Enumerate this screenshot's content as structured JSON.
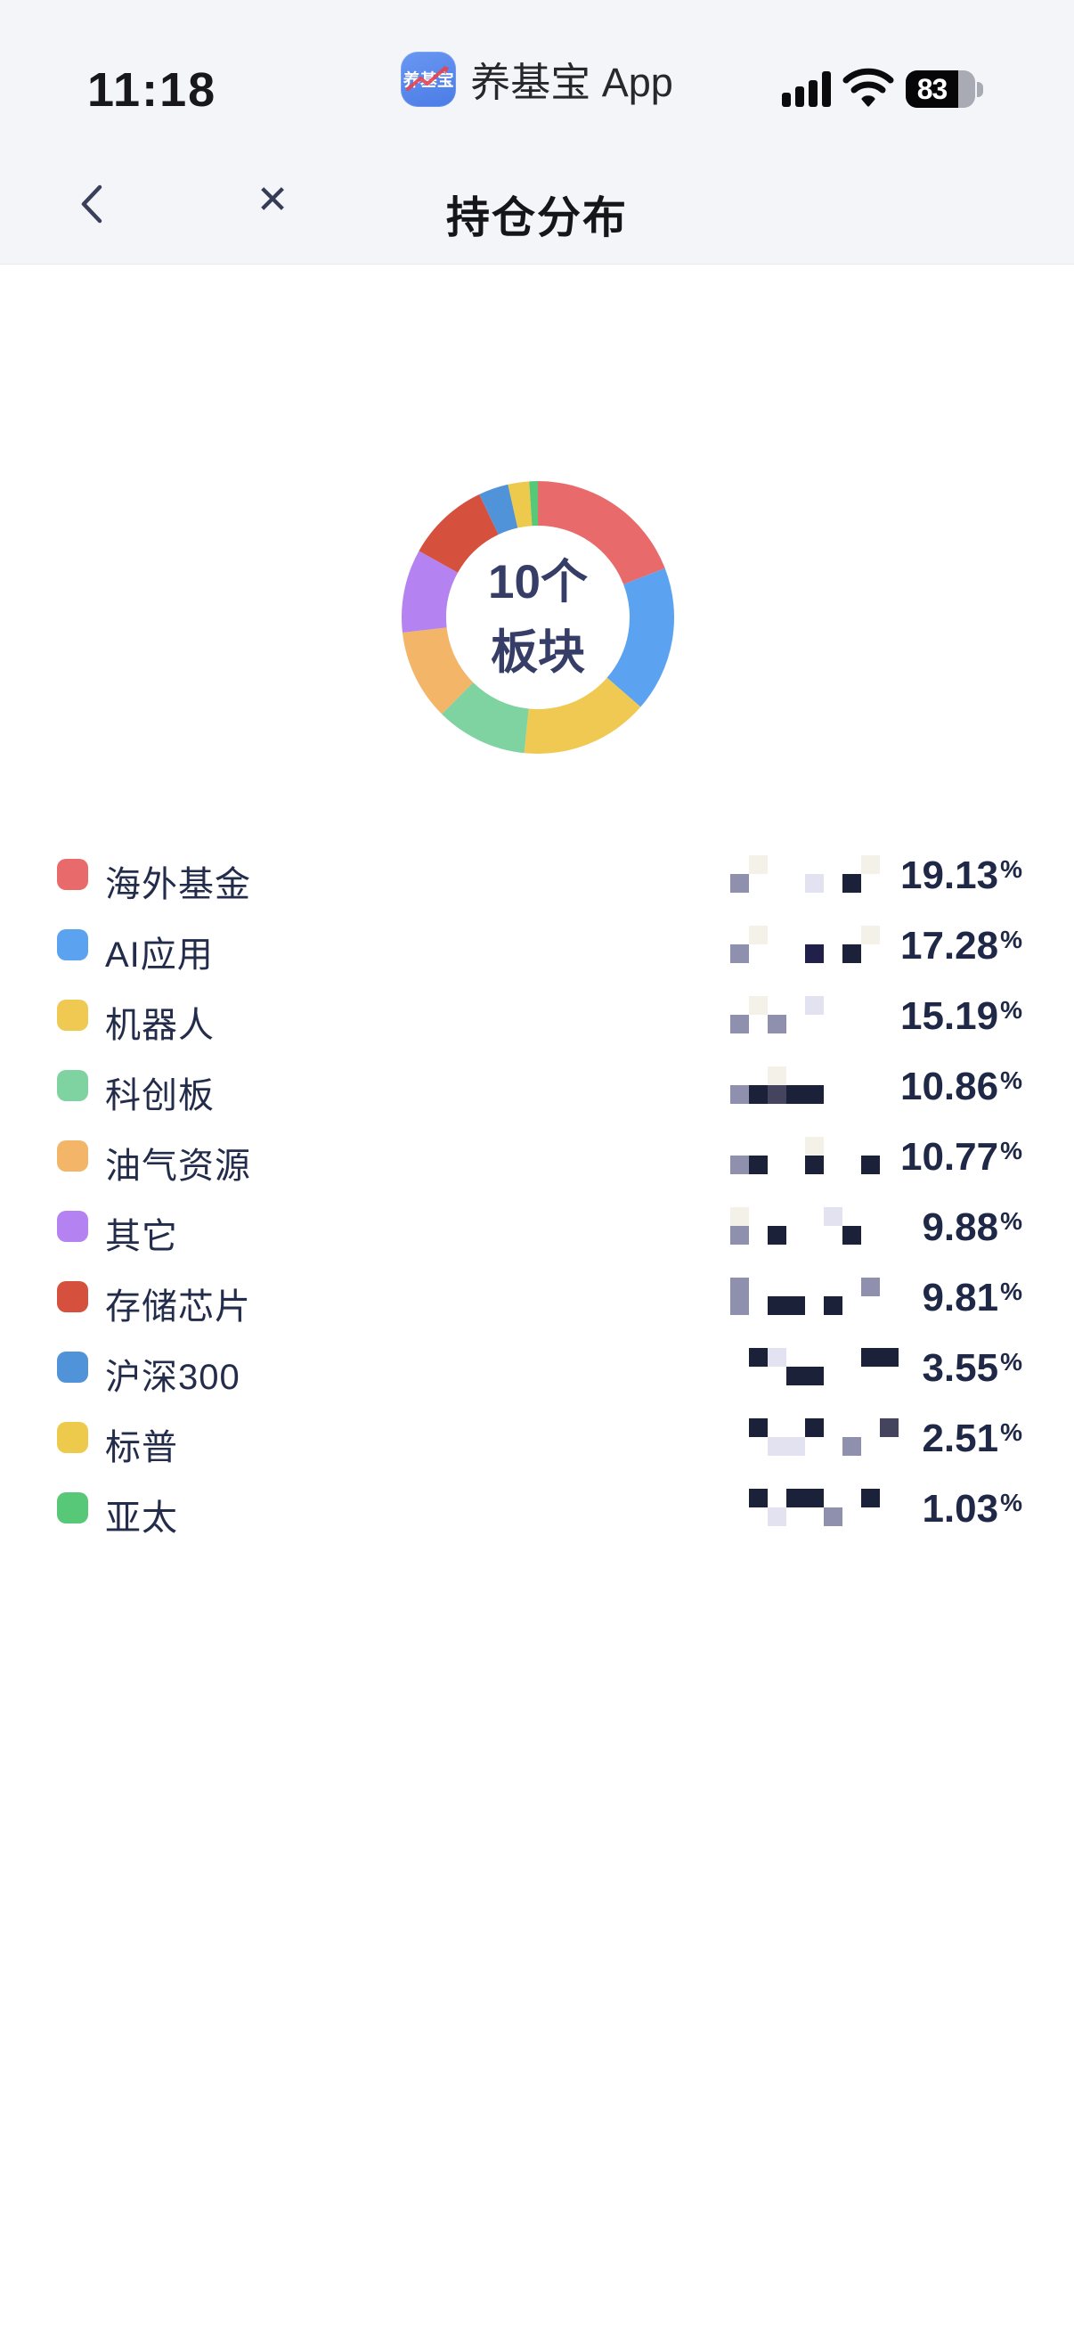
{
  "status_bar": {
    "time": "11:18",
    "app_icon_label": "养基宝",
    "app_name": "养基宝 App",
    "battery_level": "83"
  },
  "nav_bar": {
    "title": "持仓分布",
    "close_icon": "✕"
  },
  "chart_data": {
    "type": "pie",
    "subtype": "donut",
    "title": "持仓分布",
    "center_label": [
      "10个",
      "板块"
    ],
    "start_angle_deg": -90,
    "direction": "clockwise",
    "unit": "%",
    "values_censored": true,
    "series": [
      {
        "name": "海外基金",
        "value": 19.13,
        "display": "19.13%",
        "color": "#E96A6A",
        "mosaic": [
          "wfwwwwwfw",
          "mwwwlwdww"
        ]
      },
      {
        "name": "AI应用",
        "value": 17.28,
        "display": "17.28%",
        "color": "#5BA3F0",
        "mosaic": [
          "wfwwwwwfw",
          "mwwwnwdww"
        ]
      },
      {
        "name": "机器人",
        "value": 15.19,
        "display": "15.19%",
        "color": "#F0C952",
        "mosaic": [
          "wfwwlwwww",
          "mwmwwwwww"
        ]
      },
      {
        "name": "科创板",
        "value": 10.86,
        "display": "10.86%",
        "color": "#7FD3A0",
        "mosaic": [
          "wwfwwwwww",
          "mdsddwwww"
        ]
      },
      {
        "name": "油气资源",
        "value": 10.77,
        "display": "10.77%",
        "color": "#F3B568",
        "mosaic": [
          "wwwwfwwww",
          "mdwwdwwdw"
        ]
      },
      {
        "name": "其它",
        "value": 9.88,
        "display": "9.88%",
        "color": "#B582F2",
        "mosaic": [
          "fwwwwlwww",
          "mwdwwwdww"
        ]
      },
      {
        "name": "存储芯片",
        "value": 9.81,
        "display": "9.81%",
        "color": "#D6503E",
        "mosaic": [
          "mwwwwwwmw",
          "mwddwdwww"
        ]
      },
      {
        "name": "沪深300",
        "value": 3.55,
        "display": "3.55%",
        "color": "#5193D9",
        "mosaic": [
          "wdlwwwwdd",
          "wwwddwwww"
        ]
      },
      {
        "name": "标普",
        "value": 2.51,
        "display": "2.51%",
        "color": "#EECA4C",
        "mosaic": [
          "wdwwdwwws",
          "wwllwwmww"
        ]
      },
      {
        "name": "亚太",
        "value": 1.03,
        "display": "1.03%",
        "color": "#56C878",
        "mosaic": [
          "wdwddwwdw",
          "wwlwwmwww"
        ]
      }
    ]
  },
  "mosaic_palette": {
    "d": "#1B2138",
    "n": "#20204A",
    "s": "#44445F",
    "m": "#8F8FAE",
    "l": "#E2E2F0",
    "f": "#F4F2E8",
    "w": "transparent"
  }
}
